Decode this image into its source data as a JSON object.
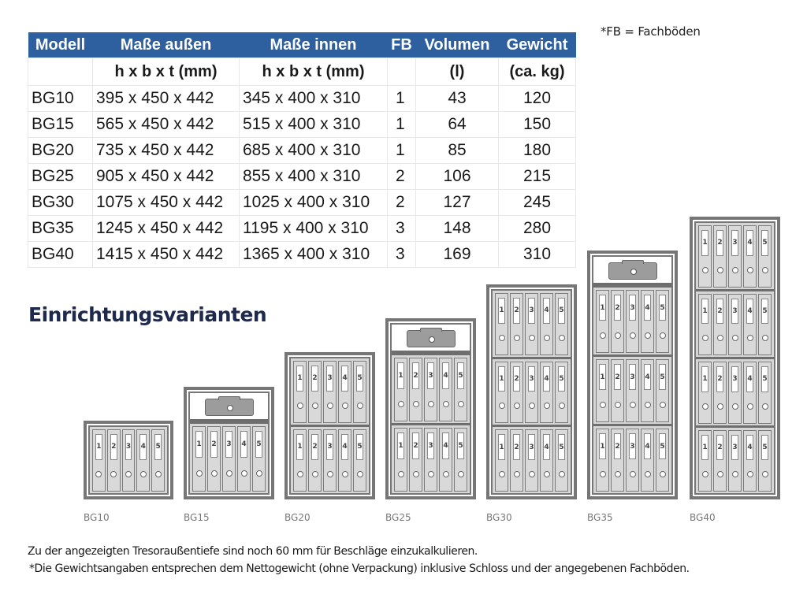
{
  "fb_note": "*FB = Fachböden",
  "table": {
    "headers": [
      "Modell",
      "Maße außen",
      "Maße innen",
      "FB",
      "Volumen",
      "Gewicht"
    ],
    "subheaders": [
      "",
      "h x b x t (mm)",
      "h x b x t (mm)",
      "",
      "(l)",
      "(ca. kg)"
    ],
    "rows": [
      {
        "model": "BG10",
        "outer": "395 x 450 x 442",
        "inner": "345 x 400 x 310",
        "fb": "1",
        "volume": "43",
        "weight": "120"
      },
      {
        "model": "BG15",
        "outer": "565 x 450 x 442",
        "inner": "515 x 400 x 310",
        "fb": "1",
        "volume": "64",
        "weight": "150"
      },
      {
        "model": "BG20",
        "outer": "735 x 450 x 442",
        "inner": "685 x 400 x 310",
        "fb": "1",
        "volume": "85",
        "weight": "180"
      },
      {
        "model": "BG25",
        "outer": "905 x 450 x 442",
        "inner": "855 x 400 x 310",
        "fb": "2",
        "volume": "106",
        "weight": "215"
      },
      {
        "model": "BG30",
        "outer": "1075 x 450 x 442",
        "inner": "1025 x 400 x 310",
        "fb": "2",
        "volume": "127",
        "weight": "245"
      },
      {
        "model": "BG35",
        "outer": "1245 x 450 x 442",
        "inner": "1195 x 400 x 310",
        "fb": "3",
        "volume": "148",
        "weight": "280"
      },
      {
        "model": "BG40",
        "outer": "1415 x 450 x 442",
        "inner": "1365 x 400 x 310",
        "fb": "3",
        "volume": "169",
        "weight": "310"
      }
    ]
  },
  "section_title": "Einrichtungsvarianten",
  "variants": [
    {
      "name": "BG10",
      "cashbox": false,
      "binder_rows": 1
    },
    {
      "name": "BG15",
      "cashbox": true,
      "binder_rows": 1
    },
    {
      "name": "BG20",
      "cashbox": false,
      "binder_rows": 2
    },
    {
      "name": "BG25",
      "cashbox": true,
      "binder_rows": 2
    },
    {
      "name": "BG30",
      "cashbox": false,
      "binder_rows": 3
    },
    {
      "name": "BG35",
      "cashbox": true,
      "binder_rows": 3
    },
    {
      "name": "BG40",
      "cashbox": false,
      "binder_rows": 4
    }
  ],
  "binder_labels": [
    "1",
    "2",
    "3",
    "4",
    "5"
  ],
  "footnotes": [
    "Zu der angezeigten Tresoraußentiefe sind noch 60 mm für Beschläge einzukalkulieren.",
    "*Die Gewichtsangaben entsprechen dem Nettogewicht (ohne Verpackung) inklusive Schloss und der angegebenen Fachböden."
  ],
  "colors": {
    "header_bg": "#2e5f9f",
    "title": "#1d2a4d"
  }
}
